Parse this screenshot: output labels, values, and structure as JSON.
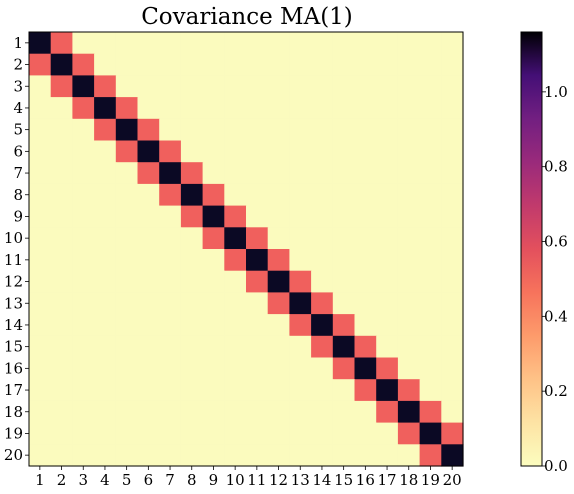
{
  "chart_data": {
    "type": "heatmap",
    "title": "Covariance MA(1)",
    "xlabel": "",
    "ylabel": "",
    "x_categories": [
      "1",
      "2",
      "3",
      "4",
      "5",
      "6",
      "7",
      "8",
      "9",
      "10",
      "11",
      "12",
      "13",
      "14",
      "15",
      "16",
      "17",
      "18",
      "19",
      "20"
    ],
    "y_categories": [
      "1",
      "2",
      "3",
      "4",
      "5",
      "6",
      "7",
      "8",
      "9",
      "10",
      "11",
      "12",
      "13",
      "14",
      "15",
      "16",
      "17",
      "18",
      "19",
      "20"
    ],
    "values": {
      "diagonal": 1.16,
      "off_diagonal_adjacent": 0.4,
      "elsewhere": 0.0
    },
    "colormap": "magma_r",
    "colors": {
      "zero": "#fbfbbe",
      "adjacent": "#f0605d",
      "diagonal": "#0b0924"
    },
    "colorbar": {
      "range": [
        0.0,
        1.16
      ],
      "ticks": [
        0.0,
        0.2,
        0.4,
        0.6,
        0.8,
        1.0
      ],
      "tick_labels": [
        "0.0",
        "0.2",
        "0.4",
        "0.6",
        "0.8",
        "1.0"
      ]
    },
    "grid": false
  }
}
